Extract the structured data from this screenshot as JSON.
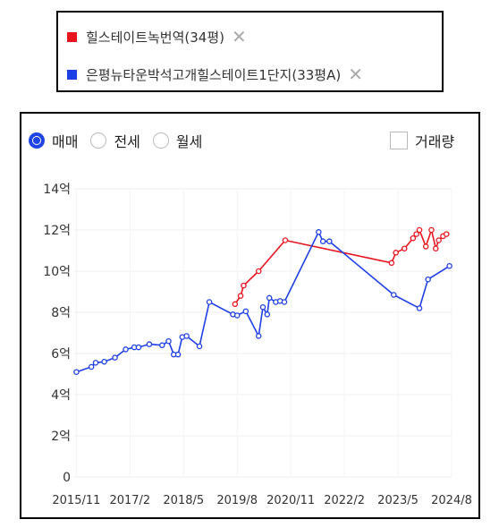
{
  "legend": {
    "items": [
      {
        "label": "힐스테이트녹번역(34평)",
        "color": "#e8141e",
        "close": "✕"
      },
      {
        "label": "은평뉴타운박석고개힐스테이트1단지(33평A)",
        "color": "#1f3fe6",
        "close": "✕"
      }
    ]
  },
  "controls": {
    "tabs": [
      "매매",
      "전세",
      "월세"
    ],
    "selected": "매매",
    "volume_label": "거래량",
    "volume_checked": false
  },
  "chart_data": {
    "type": "line",
    "y_ticks": [
      {
        "value": 0,
        "label": "0"
      },
      {
        "value": 2,
        "label": "2억"
      },
      {
        "value": 4,
        "label": "4억"
      },
      {
        "value": 6,
        "label": "6억"
      },
      {
        "value": 8,
        "label": "8억"
      },
      {
        "value": 10,
        "label": "10억"
      },
      {
        "value": 12,
        "label": "12억"
      },
      {
        "value": 14,
        "label": "14억"
      }
    ],
    "x_ticks": [
      "2015/11",
      "2017/2",
      "2018/5",
      "2019/8",
      "2020/11",
      "2022/2",
      "2023/5",
      "2024/8"
    ],
    "ylim": [
      0,
      14
    ],
    "grid": true,
    "series": [
      {
        "name": "힐스테이트녹번역(34평)",
        "color": "#e8141e",
        "points": [
          [
            2019.55,
            8.4
          ],
          [
            2019.68,
            8.8
          ],
          [
            2019.75,
            9.3
          ],
          [
            2020.1,
            10.0
          ],
          [
            2020.72,
            11.5
          ],
          [
            2023.2,
            10.4
          ],
          [
            2023.3,
            10.9
          ],
          [
            2023.5,
            11.1
          ],
          [
            2023.7,
            11.6
          ],
          [
            2023.78,
            11.8
          ],
          [
            2023.85,
            12.0
          ],
          [
            2024.0,
            11.2
          ],
          [
            2024.13,
            12.0
          ],
          [
            2024.23,
            11.1
          ],
          [
            2024.3,
            11.5
          ],
          [
            2024.4,
            11.7
          ],
          [
            2024.48,
            11.8
          ]
        ]
      },
      {
        "name": "은평뉴타운박석고개힐스테이트1단지(33평A)",
        "color": "#1f3fe6",
        "points": [
          [
            2015.85,
            5.1
          ],
          [
            2016.2,
            5.35
          ],
          [
            2016.3,
            5.55
          ],
          [
            2016.5,
            5.6
          ],
          [
            2016.75,
            5.8
          ],
          [
            2017.0,
            6.2
          ],
          [
            2017.2,
            6.3
          ],
          [
            2017.3,
            6.3
          ],
          [
            2017.55,
            6.45
          ],
          [
            2017.85,
            6.4
          ],
          [
            2018.0,
            6.6
          ],
          [
            2018.12,
            5.95
          ],
          [
            2018.22,
            5.95
          ],
          [
            2018.32,
            6.8
          ],
          [
            2018.42,
            6.85
          ],
          [
            2018.72,
            6.35
          ],
          [
            2018.95,
            8.5
          ],
          [
            2019.5,
            7.9
          ],
          [
            2019.6,
            7.85
          ],
          [
            2019.8,
            8.05
          ],
          [
            2020.1,
            6.85
          ],
          [
            2020.2,
            8.25
          ],
          [
            2020.3,
            7.9
          ],
          [
            2020.35,
            8.7
          ],
          [
            2020.5,
            8.5
          ],
          [
            2020.6,
            8.55
          ],
          [
            2020.7,
            8.5
          ],
          [
            2021.5,
            11.9
          ],
          [
            2021.6,
            11.45
          ],
          [
            2021.75,
            11.45
          ],
          [
            2023.25,
            8.85
          ],
          [
            2023.85,
            8.2
          ],
          [
            2024.05,
            9.6
          ],
          [
            2024.55,
            10.25
          ]
        ]
      }
    ]
  }
}
